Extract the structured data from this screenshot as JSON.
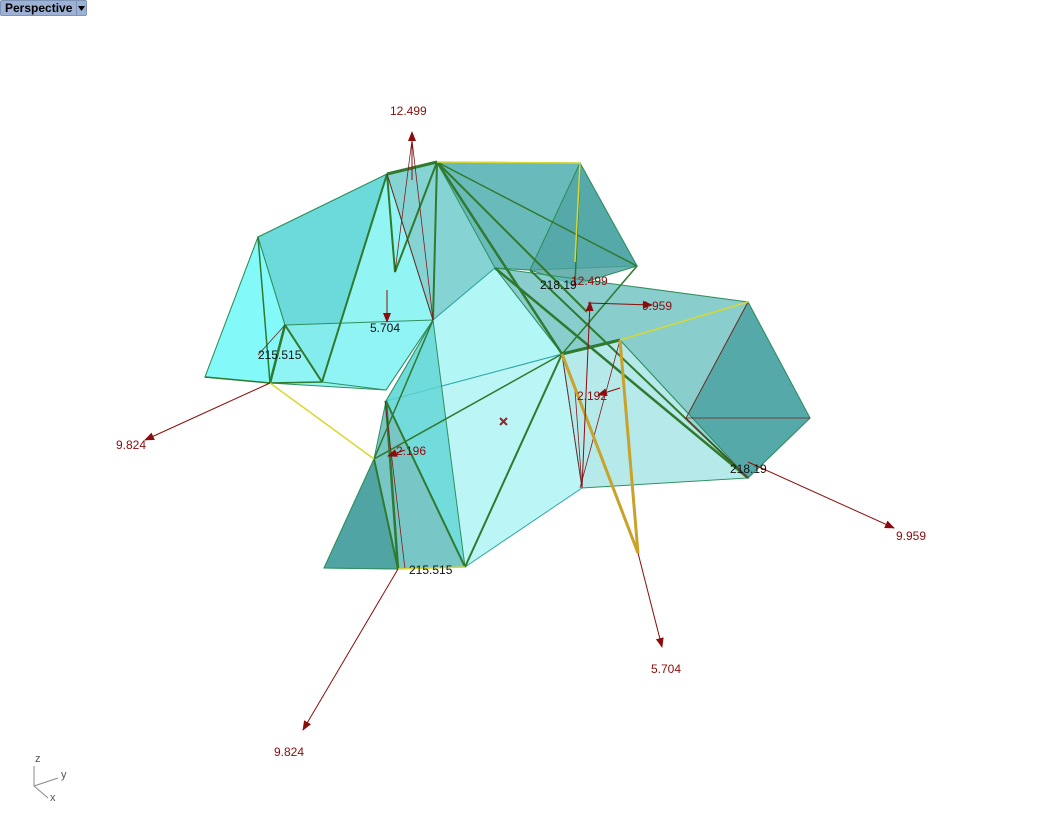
{
  "viewport": {
    "title": "Perspective",
    "dropdown_icon": "chevron-down-icon"
  },
  "dimension_labels": {
    "top_arrow": "12.499",
    "center_arrow": "12.499",
    "left_arrow": "9.824",
    "right_arrow": "9.959",
    "right_inner_arrow": "9.959",
    "bottom_left_arrow": "9.824",
    "bottom_arrow": "5.704",
    "inner_top_arrow": "5.704",
    "inner_right_arrow": "2.192",
    "inner_left_arrow": "2.196"
  },
  "face_labels": {
    "left_face": "215.515",
    "bottom_face": "215.515",
    "center_face": "218.19",
    "right_face": "218.19"
  },
  "axis_gizmo": {
    "z": "z",
    "y": "y",
    "x": "x"
  },
  "colors": {
    "surface_light": "#7ff2f2",
    "surface_mid": "#5fd6d6",
    "surface_dark": "#4aa9a9",
    "edge_green": "#2f7a2f",
    "edge_yellow": "#d8d832",
    "edge_orange": "#c8a22a",
    "arrow_red": "#8b0c0c"
  }
}
